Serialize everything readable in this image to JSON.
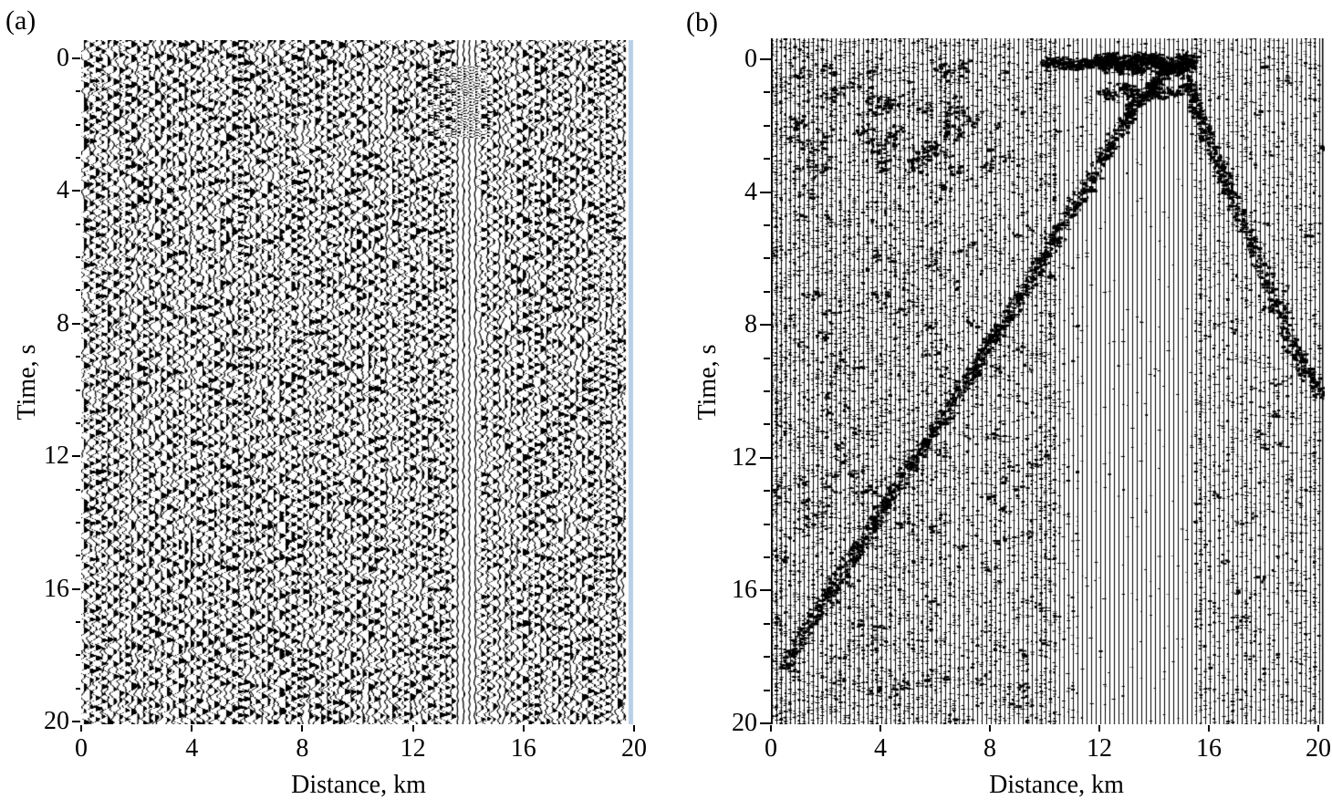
{
  "figure": {
    "background": "#ffffff",
    "ink": "#000000",
    "panels": [
      {
        "label": "(a)",
        "y_axis": {
          "title": "Time, s",
          "range": [
            0,
            20
          ],
          "major_ticks": [
            0,
            4,
            8,
            12,
            16,
            20
          ],
          "minor_step": 1
        },
        "x_axis": {
          "title": "Distance, km",
          "range": [
            0,
            20
          ],
          "major_ticks": [
            0,
            4,
            8,
            12,
            16,
            20
          ]
        }
      },
      {
        "label": "(b)",
        "y_axis": {
          "title": "Time, s",
          "range": [
            0,
            20
          ],
          "major_ticks": [
            0,
            4,
            8,
            12,
            16,
            20
          ],
          "minor_step": 1
        },
        "x_axis": {
          "title": "Distance, km",
          "range": [
            0,
            20
          ],
          "major_ticks": [
            0,
            4,
            8,
            12,
            16,
            20
          ]
        }
      }
    ]
  },
  "chart_data": [
    {
      "type": "heatmap",
      "subtype": "seismic-record-section-wiggle-traces",
      "panel": "(a)",
      "xlabel": "Distance, km",
      "ylabel": "Time, s",
      "xlim": [
        0,
        20
      ],
      "ylim": [
        20,
        0
      ],
      "x_ticks": [
        0,
        4,
        8,
        12,
        16,
        20
      ],
      "y_ticks": [
        0,
        4,
        8,
        12,
        16,
        20
      ],
      "description": "Dense black-and-white variable-area seismic wiggle traces of band-limited noise covering the whole section; no coherent arrivals.",
      "features": {
        "event_patch": {
          "km": [
            12.4,
            14.9
          ],
          "t": [
            0.2,
            2.4
          ],
          "desc": "high-frequency wave packet near top of section"
        },
        "quiet_bands_km": [
          [
            13.55,
            14.4
          ],
          [
            10.95,
            11.2
          ],
          [
            15.02,
            15.2
          ]
        ],
        "edge_stripe": {
          "km": [
            19.85,
            20
          ],
          "color": "#b9cfe6",
          "desc": "light-blue stripe at right edge of section"
        }
      }
    },
    {
      "type": "heatmap",
      "subtype": "seismic-record-section-trace-speckle",
      "panel": "(b)",
      "xlabel": "Distance, km",
      "ylabel": "Time, s",
      "xlim": [
        0,
        20
      ],
      "ylim": [
        20,
        0
      ],
      "x_ticks": [
        0,
        4,
        8,
        12,
        16,
        20
      ],
      "y_ticks": [
        0,
        4,
        8,
        12,
        16,
        20
      ],
      "description": "Record section of thin vertical traces; strong ambient noise on the left half, nearly clean traces inside the triangular zone below the first-arrival apex near 14.5 km.",
      "first_arrival_curve": {
        "apex_km": 14.6,
        "apex_band": {
          "km": [
            9.9,
            15.35
          ],
          "t": 0.1,
          "strong_km": [
            11.9,
            15.35
          ]
        },
        "left_branch": [
          [
            0.4,
            18.3
          ],
          [
            1,
            17.4
          ],
          [
            2,
            16.1
          ],
          [
            3,
            14.8
          ],
          [
            4,
            13.5
          ],
          [
            5,
            12.2
          ],
          [
            6,
            11.0
          ],
          [
            7,
            9.7
          ],
          [
            8,
            8.4
          ],
          [
            9,
            7.2
          ],
          [
            10,
            5.8
          ],
          [
            11,
            4.4
          ],
          [
            12,
            3.0
          ],
          [
            13,
            1.6
          ],
          [
            14.3,
            0.3
          ]
        ],
        "right_branch": [
          [
            14.95,
            0.3
          ],
          [
            15.8,
            2.3
          ],
          [
            16.5,
            3.6
          ],
          [
            17.2,
            5.0
          ],
          [
            18.0,
            6.6
          ],
          [
            18.8,
            8.3
          ],
          [
            19.5,
            9.4
          ],
          [
            20,
            10.1
          ]
        ]
      },
      "noise_zones": [
        {
          "km": [
            0,
            6.5
          ],
          "level": "high"
        },
        {
          "km": [
            6.5,
            10.5
          ],
          "level": "medium"
        },
        {
          "km": [
            11.25,
            15.45
          ],
          "after_first_arrival": true,
          "level": "very low (clean traces)"
        },
        {
          "km": [
            16,
            20
          ],
          "level": "medium-low"
        }
      ],
      "dark_columns_km": [
        [
          0,
          0.35
        ],
        [
          8.1,
          8.35
        ],
        [
          9.7,
          10.45
        ],
        [
          15.42,
          15.72
        ],
        [
          17.2,
          17.5
        ],
        [
          19.8,
          20
        ]
      ]
    }
  ]
}
